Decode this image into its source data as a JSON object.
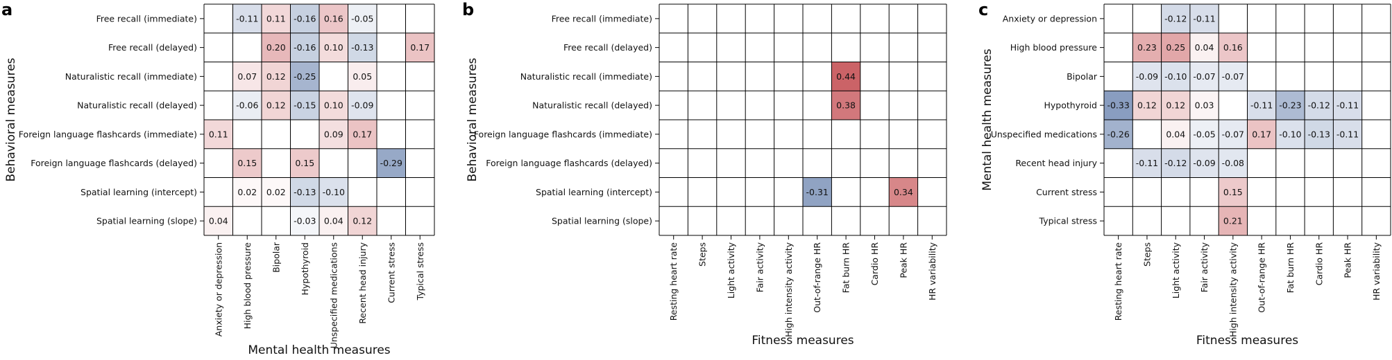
{
  "chart_data": [
    {
      "type": "heatmap",
      "panel_label": "a",
      "xlabel": "Mental health measures",
      "ylabel": "Behavioral measures",
      "rows": [
        "Free recall (immediate)",
        "Free recall (delayed)",
        "Naturalistic recall (immediate)",
        "Naturalistic recall (delayed)",
        "Foreign language flashcards (immediate)",
        "Foreign language flashcards (delayed)",
        "Spatial learning (intercept)",
        "Spatial learning (slope)"
      ],
      "cols": [
        "Anxiety or depression",
        "High blood pressure",
        "Bipolar",
        "Hypothyroid",
        "Unspecified medications",
        "Recent head injury",
        "Current stress",
        "Typical stress"
      ],
      "values": [
        [
          null,
          -0.11,
          0.11,
          -0.16,
          0.16,
          -0.05,
          null,
          null
        ],
        [
          null,
          null,
          0.2,
          -0.16,
          0.1,
          -0.13,
          null,
          0.17
        ],
        [
          null,
          0.07,
          0.12,
          -0.25,
          null,
          0.05,
          null,
          null
        ],
        [
          null,
          -0.06,
          0.12,
          -0.15,
          0.1,
          -0.09,
          null,
          null
        ],
        [
          0.11,
          null,
          null,
          null,
          0.09,
          0.17,
          null,
          null
        ],
        [
          null,
          0.15,
          null,
          0.15,
          null,
          null,
          -0.29,
          null
        ],
        [
          null,
          0.02,
          0.02,
          -0.13,
          -0.1,
          null,
          null,
          null
        ],
        [
          0.04,
          null,
          null,
          -0.03,
          0.04,
          0.12,
          null,
          null
        ]
      ]
    },
    {
      "type": "heatmap",
      "panel_label": "b",
      "xlabel": "Fitness measures",
      "ylabel": "Behavioral measures",
      "rows": [
        "Free recall (immediate)",
        "Free recall (delayed)",
        "Naturalistic recall (immediate)",
        "Naturalistic recall (delayed)",
        "Foreign language flashcards (immediate)",
        "Foreign language flashcards (delayed)",
        "Spatial learning (intercept)",
        "Spatial learning (slope)"
      ],
      "cols": [
        "Resting heart rate",
        "Steps",
        "Light activity",
        "Fair activity",
        "High intensity activity",
        "Out-of-range HR",
        "Fat burn HR",
        "Cardio HR",
        "Peak HR",
        "HR variability"
      ],
      "values": [
        [
          null,
          null,
          null,
          null,
          null,
          null,
          null,
          null,
          null,
          null
        ],
        [
          null,
          null,
          null,
          null,
          null,
          null,
          null,
          null,
          null,
          null
        ],
        [
          null,
          null,
          null,
          null,
          null,
          null,
          0.44,
          null,
          null,
          null
        ],
        [
          null,
          null,
          null,
          null,
          null,
          null,
          0.38,
          null,
          null,
          null
        ],
        [
          null,
          null,
          null,
          null,
          null,
          null,
          null,
          null,
          null,
          null
        ],
        [
          null,
          null,
          null,
          null,
          null,
          null,
          null,
          null,
          null,
          null
        ],
        [
          null,
          null,
          null,
          null,
          null,
          -0.31,
          null,
          null,
          0.34,
          null
        ],
        [
          null,
          null,
          null,
          null,
          null,
          null,
          null,
          null,
          null,
          null
        ]
      ]
    },
    {
      "type": "heatmap",
      "panel_label": "c",
      "xlabel": "Fitness measures",
      "ylabel": "Mental health measures",
      "rows": [
        "Anxiety or depression",
        "High blood pressure",
        "Bipolar",
        "Hypothyroid",
        "Unspecified medications",
        "Recent head injury",
        "Current stress",
        "Typical stress"
      ],
      "cols": [
        "Resting heart rate",
        "Steps",
        "Light activity",
        "Fair activity",
        "High intensity activity",
        "Out-of-range HR",
        "Fat burn HR",
        "Cardio HR",
        "Peak HR",
        "HR variability"
      ],
      "values": [
        [
          null,
          null,
          -0.12,
          -0.11,
          null,
          null,
          null,
          null,
          null,
          null
        ],
        [
          null,
          0.23,
          0.25,
          0.04,
          0.16,
          null,
          null,
          null,
          null,
          null
        ],
        [
          null,
          -0.09,
          -0.1,
          -0.07,
          -0.07,
          null,
          null,
          null,
          null,
          null
        ],
        [
          -0.33,
          0.12,
          0.12,
          0.03,
          null,
          -0.11,
          -0.23,
          -0.12,
          -0.11,
          null
        ],
        [
          -0.26,
          null,
          0.04,
          -0.05,
          -0.07,
          0.17,
          -0.1,
          -0.13,
          -0.11,
          null
        ],
        [
          null,
          -0.11,
          -0.12,
          -0.09,
          -0.08,
          null,
          null,
          null,
          null,
          null
        ],
        [
          null,
          null,
          null,
          null,
          0.15,
          null,
          null,
          null,
          null,
          null
        ],
        [
          null,
          null,
          null,
          null,
          0.21,
          null,
          null,
          null,
          null,
          null
        ]
      ]
    }
  ],
  "colors": {
    "positive": "#c44e52",
    "negative": "#4c6b9f",
    "grid": "#000000",
    "background": "#ffffff"
  }
}
